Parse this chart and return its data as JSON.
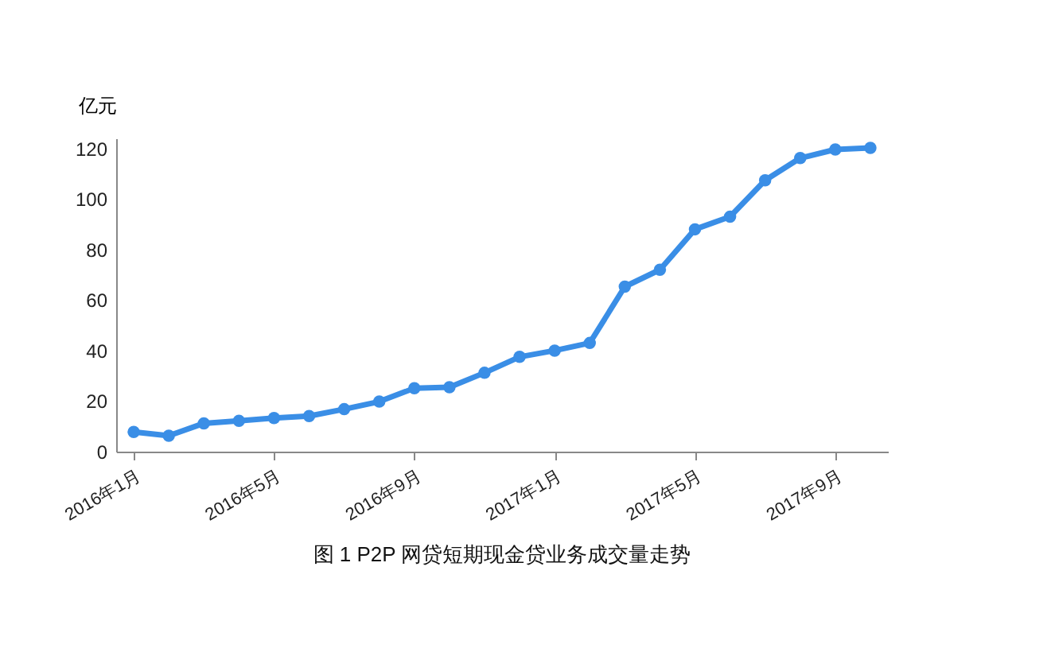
{
  "chart_data": {
    "type": "line",
    "title": "图 1    P2P 网贷短期现金贷业务成交量走势",
    "ylabel": "亿元",
    "categories": [
      "2016年1月",
      null,
      null,
      null,
      "2016年5月",
      null,
      null,
      null,
      "2016年9月",
      null,
      null,
      null,
      "2017年1月",
      null,
      null,
      null,
      "2017年5月",
      null,
      null,
      null,
      "2017年9月",
      null
    ],
    "series": [
      {
        "color": "#3a8ee6",
        "values": [
          7.8,
          6.3,
          11.2,
          12.2,
          13.3,
          14.1,
          16.8,
          19.8,
          25.1,
          25.5,
          31.2,
          37.5,
          40,
          43,
          65.3,
          72,
          88,
          93,
          107.4,
          116.2,
          119.6,
          120.2
        ]
      }
    ],
    "ylim": [
      0,
      124
    ],
    "yticks": [
      0,
      20,
      40,
      60,
      80,
      100,
      120
    ],
    "grid": false,
    "marker": "circle",
    "line_style": "solid"
  }
}
